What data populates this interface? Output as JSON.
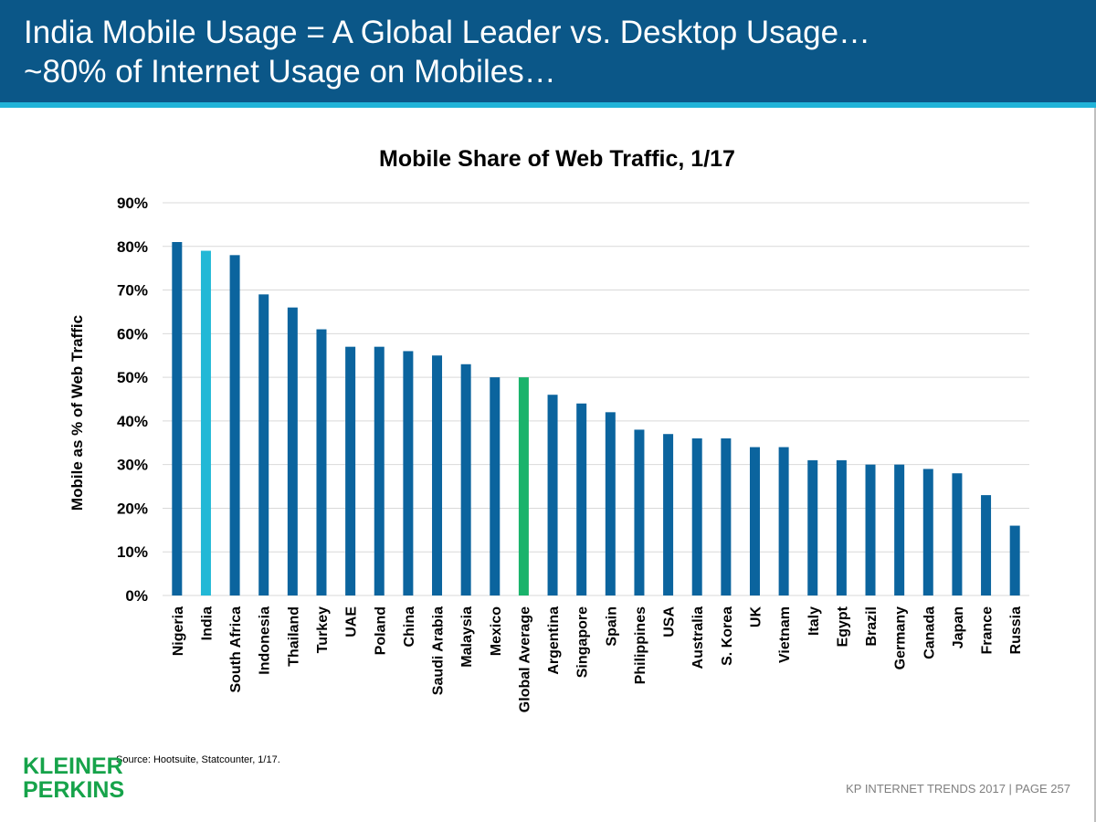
{
  "header": {
    "line1": "India Mobile Usage = A Global Leader vs. Desktop Usage…",
    "line2": "~80% of Internet Usage on Mobiles…"
  },
  "colors": {
    "header_bg": "#0b5788",
    "header_stripe": "#20b3d8",
    "bar_default": "#0b649e",
    "bar_highlight_india": "#22b8d6",
    "bar_highlight_global": "#19b36b",
    "gridline": "#d9d9d9",
    "logo": "#16a34a"
  },
  "chart_data": {
    "type": "bar",
    "title": "Mobile Share of Web Traffic, 1/17",
    "xlabel": "",
    "ylabel": "Mobile as % of Web Traffic",
    "ylim": [
      0,
      90
    ],
    "y_ticks": [
      "0%",
      "10%",
      "20%",
      "30%",
      "40%",
      "50%",
      "60%",
      "70%",
      "80%",
      "90%"
    ],
    "grid": true,
    "categories": [
      "Nigeria",
      "India",
      "South Africa",
      "Indonesia",
      "Thailand",
      "Turkey",
      "UAE",
      "Poland",
      "China",
      "Saudi Arabia",
      "Malaysia",
      "Mexico",
      "Global Average",
      "Argentina",
      "Singapore",
      "Spain",
      "Philippines",
      "USA",
      "Australia",
      "S. Korea",
      "UK",
      "Vietnam",
      "Italy",
      "Egypt",
      "Brazil",
      "Germany",
      "Canada",
      "Japan",
      "France",
      "Russia"
    ],
    "values": [
      81,
      79,
      78,
      69,
      66,
      61,
      57,
      57,
      56,
      55,
      53,
      50,
      50,
      46,
      44,
      42,
      38,
      37,
      36,
      36,
      34,
      34,
      31,
      31,
      30,
      30,
      29,
      28,
      23,
      16
    ],
    "highlight": {
      "India": "#22b8d6",
      "Global Average": "#19b36b"
    }
  },
  "source": "Source: Hootsuite, Statcounter, 1/17.",
  "logo": {
    "line1": "KLEINER",
    "line2": "PERKINS"
  },
  "footer": "KP INTERNET TRENDS 2017   |   PAGE 257"
}
